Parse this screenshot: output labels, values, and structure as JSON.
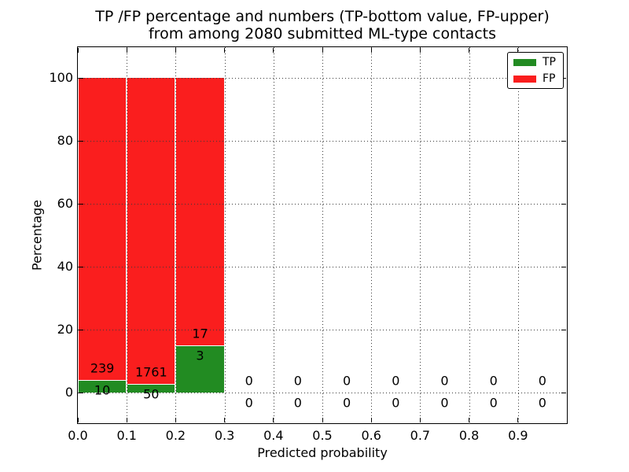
{
  "figure": {
    "title_line1": "TP /FP percentage and numbers (TP-bottom value, FP-upper)",
    "title_line2": "from among 2080 submitted ML-type contacts",
    "xlabel": "Predicted probability",
    "ylabel": "Percentage"
  },
  "colors": {
    "tp": "#228B22",
    "fp": "#FA1E1E",
    "grid": "#3a3a3a",
    "spine": "#000000",
    "background": "#ffffff",
    "text": "#000000"
  },
  "legend": {
    "position": "upper right",
    "entries": [
      {
        "label": "TP",
        "color_key": "tp"
      },
      {
        "label": "FP",
        "color_key": "fp"
      }
    ]
  },
  "chart_data": {
    "type": "bar",
    "stacked": true,
    "normalized_to_percent": true,
    "title": "TP /FP percentage and numbers (TP-bottom value, FP-upper)\nfrom among 2080 submitted ML-type contacts",
    "xlabel": "Predicted probability",
    "ylabel": "Percentage",
    "total_contacts": 2080,
    "bin_width": 0.1,
    "x_bins_start": [
      0.0,
      0.1,
      0.2,
      0.3,
      0.4,
      0.5,
      0.6,
      0.7,
      0.8,
      0.9
    ],
    "series": [
      {
        "name": "TP",
        "counts": [
          10,
          50,
          3,
          0,
          0,
          0,
          0,
          0,
          0,
          0
        ]
      },
      {
        "name": "FP",
        "counts": [
          239,
          1761,
          17,
          0,
          0,
          0,
          0,
          0,
          0,
          0
        ]
      }
    ],
    "tp_percent_of_bin": [
      4.02,
      2.76,
      15.0,
      0,
      0,
      0,
      0,
      0,
      0,
      0
    ],
    "x_ticks": [
      "0.0",
      "0.1",
      "0.2",
      "0.3",
      "0.4",
      "0.5",
      "0.6",
      "0.7",
      "0.8",
      "0.9"
    ],
    "y_ticks": [
      0,
      20,
      40,
      60,
      80,
      100
    ],
    "xlim": [
      0.0,
      1.0
    ],
    "ylim": [
      -10,
      110
    ],
    "grid": true,
    "grid_style": "dotted",
    "grid_above_bars": true,
    "legend_position": "upper right"
  }
}
